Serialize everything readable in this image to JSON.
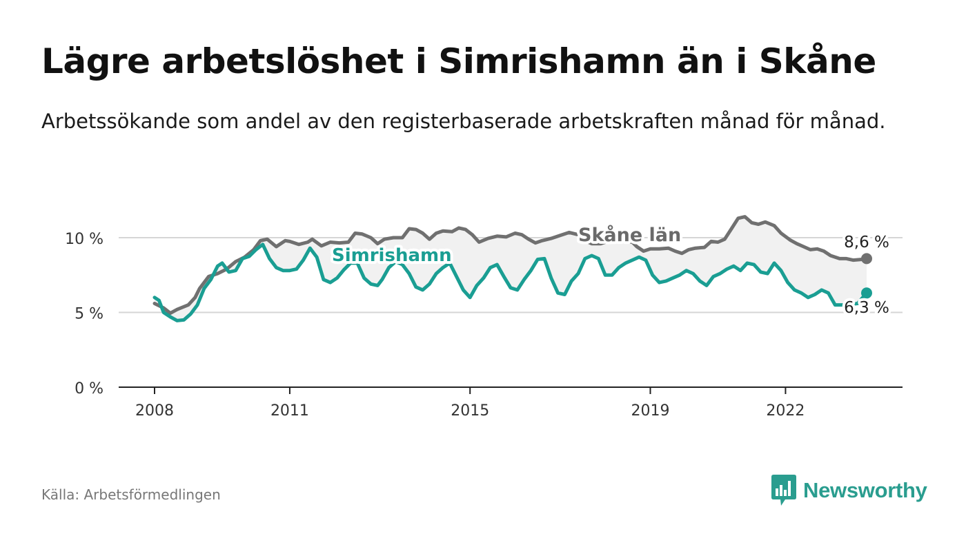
{
  "title": "Lägre arbetslöshet i Simrishamn än i Skåne",
  "subtitle": "Arbetssökande som andel av den registerbaserade arbetskraften månad för månad.",
  "source": "Källa: Arbetsförmedlingen",
  "brand": {
    "name": "Newsworthy",
    "icon": "bar-chart-speech-bubble-icon"
  },
  "colors": {
    "simrishamn": "#1a9e93",
    "skane": "#707070",
    "band": "#f1f1f1",
    "grid": "#d6d6d6",
    "axis": "#222222"
  },
  "chart_data": {
    "type": "line",
    "title": "Lägre arbetslöshet i Simrishamn än i Skåne",
    "xlabel": "",
    "ylabel": "",
    "xlim": [
      2008,
      2022.9
    ],
    "ylim": [
      0,
      10
    ],
    "y_ticks": [
      0,
      5,
      10
    ],
    "y_tick_labels": [
      "0 %",
      "5 %",
      "10 %"
    ],
    "x_ticks": [
      2008,
      2011,
      2015,
      2019,
      2022
    ],
    "x_tick_labels": [
      "2008",
      "2011",
      "2015",
      "2019",
      "2022"
    ],
    "grid": true,
    "series": [
      {
        "name": "Skåne län",
        "label_position": "above-line-2017",
        "end_label": "8,6 %",
        "points": [
          [
            2008.0,
            5.6
          ],
          [
            2008.2,
            5.3
          ],
          [
            2008.35,
            4.95
          ],
          [
            2008.5,
            5.2
          ],
          [
            2008.75,
            5.5
          ],
          [
            2008.9,
            6.0
          ],
          [
            2009.0,
            6.6
          ],
          [
            2009.2,
            7.4
          ],
          [
            2009.4,
            7.6
          ],
          [
            2009.6,
            7.9
          ],
          [
            2009.8,
            8.4
          ],
          [
            2010.0,
            8.7
          ],
          [
            2010.2,
            9.2
          ],
          [
            2010.35,
            9.8
          ],
          [
            2010.5,
            9.9
          ],
          [
            2010.7,
            9.4
          ],
          [
            2010.9,
            9.8
          ],
          [
            2011.0,
            9.75
          ],
          [
            2011.2,
            9.55
          ],
          [
            2011.4,
            9.7
          ],
          [
            2011.5,
            9.9
          ],
          [
            2011.7,
            9.45
          ],
          [
            2011.9,
            9.7
          ],
          [
            2012.1,
            9.65
          ],
          [
            2012.3,
            9.7
          ],
          [
            2012.45,
            10.3
          ],
          [
            2012.6,
            10.25
          ],
          [
            2012.8,
            10.0
          ],
          [
            2012.95,
            9.6
          ],
          [
            2013.1,
            9.9
          ],
          [
            2013.3,
            10.0
          ],
          [
            2013.5,
            10.0
          ],
          [
            2013.65,
            10.6
          ],
          [
            2013.8,
            10.55
          ],
          [
            2013.95,
            10.3
          ],
          [
            2014.1,
            9.9
          ],
          [
            2014.25,
            10.3
          ],
          [
            2014.4,
            10.45
          ],
          [
            2014.6,
            10.4
          ],
          [
            2014.75,
            10.65
          ],
          [
            2014.9,
            10.55
          ],
          [
            2015.05,
            10.2
          ],
          [
            2015.2,
            9.7
          ],
          [
            2015.4,
            9.95
          ],
          [
            2015.6,
            10.1
          ],
          [
            2015.8,
            10.05
          ],
          [
            2016.0,
            10.3
          ],
          [
            2016.15,
            10.2
          ],
          [
            2016.3,
            9.9
          ],
          [
            2016.45,
            9.65
          ],
          [
            2016.6,
            9.8
          ],
          [
            2016.8,
            9.95
          ],
          [
            2017.0,
            10.15
          ],
          [
            2017.2,
            10.35
          ],
          [
            2017.4,
            10.2
          ],
          [
            2017.55,
            9.8
          ],
          [
            2017.7,
            9.6
          ],
          [
            2017.9,
            9.6
          ],
          [
            2018.0,
            9.7
          ],
          [
            2018.2,
            9.7
          ],
          [
            2018.3,
            9.8
          ],
          [
            2018.6,
            9.7
          ],
          [
            2018.7,
            9.4
          ],
          [
            2018.85,
            9.1
          ],
          [
            2019.0,
            9.25
          ],
          [
            2019.2,
            9.25
          ],
          [
            2019.4,
            9.3
          ],
          [
            2019.55,
            9.1
          ],
          [
            2019.7,
            8.95
          ],
          [
            2019.85,
            9.2
          ],
          [
            2020.0,
            9.3
          ],
          [
            2020.2,
            9.35
          ],
          [
            2020.35,
            9.75
          ],
          [
            2020.5,
            9.7
          ],
          [
            2020.65,
            9.9
          ],
          [
            2020.8,
            10.6
          ],
          [
            2020.95,
            11.3
          ],
          [
            2021.1,
            11.4
          ],
          [
            2021.25,
            11.0
          ],
          [
            2021.4,
            10.9
          ],
          [
            2021.55,
            11.05
          ],
          [
            2021.75,
            10.8
          ],
          [
            2021.9,
            10.3
          ],
          [
            2022.1,
            9.85
          ],
          [
            2022.25,
            9.6
          ],
          [
            2022.4,
            9.4
          ],
          [
            2022.55,
            9.2
          ],
          [
            2022.7,
            9.25
          ],
          [
            2022.85,
            9.1
          ],
          [
            2023.0,
            8.8
          ],
          [
            2023.2,
            8.6
          ],
          [
            2023.35,
            8.6
          ],
          [
            2023.5,
            8.5
          ],
          [
            2023.7,
            8.55
          ],
          [
            2023.8,
            8.6
          ]
        ]
      },
      {
        "name": "Simrishamn",
        "label_position": "below-line-2013",
        "end_label": "6,3 %",
        "points": [
          [
            2008.0,
            6.0
          ],
          [
            2008.1,
            5.8
          ],
          [
            2008.2,
            5.0
          ],
          [
            2008.35,
            4.7
          ],
          [
            2008.5,
            4.45
          ],
          [
            2008.65,
            4.5
          ],
          [
            2008.8,
            4.9
          ],
          [
            2008.95,
            5.5
          ],
          [
            2009.1,
            6.6
          ],
          [
            2009.25,
            7.2
          ],
          [
            2009.4,
            8.1
          ],
          [
            2009.5,
            8.3
          ],
          [
            2009.65,
            7.7
          ],
          [
            2009.8,
            7.8
          ],
          [
            2009.95,
            8.6
          ],
          [
            2010.1,
            8.75
          ],
          [
            2010.25,
            9.2
          ],
          [
            2010.4,
            9.55
          ],
          [
            2010.55,
            8.6
          ],
          [
            2010.7,
            8.0
          ],
          [
            2010.85,
            7.8
          ],
          [
            2011.0,
            7.8
          ],
          [
            2011.15,
            7.9
          ],
          [
            2011.3,
            8.5
          ],
          [
            2011.45,
            9.3
          ],
          [
            2011.6,
            8.7
          ],
          [
            2011.75,
            7.2
          ],
          [
            2011.9,
            7.0
          ],
          [
            2012.05,
            7.3
          ],
          [
            2012.2,
            7.85
          ],
          [
            2012.35,
            8.3
          ],
          [
            2012.5,
            8.3
          ],
          [
            2012.65,
            7.3
          ],
          [
            2012.8,
            6.9
          ],
          [
            2012.95,
            6.8
          ],
          [
            2013.05,
            7.2
          ],
          [
            2013.2,
            8.0
          ],
          [
            2013.35,
            8.4
          ],
          [
            2013.5,
            8.2
          ],
          [
            2013.65,
            7.6
          ],
          [
            2013.8,
            6.7
          ],
          [
            2013.95,
            6.5
          ],
          [
            2014.1,
            6.9
          ],
          [
            2014.25,
            7.6
          ],
          [
            2014.4,
            8.0
          ],
          [
            2014.55,
            8.3
          ],
          [
            2014.7,
            7.4
          ],
          [
            2014.85,
            6.5
          ],
          [
            2015.0,
            6.0
          ],
          [
            2015.15,
            6.8
          ],
          [
            2015.3,
            7.3
          ],
          [
            2015.45,
            8.0
          ],
          [
            2015.6,
            8.2
          ],
          [
            2015.75,
            7.4
          ],
          [
            2015.9,
            6.65
          ],
          [
            2016.05,
            6.5
          ],
          [
            2016.2,
            7.2
          ],
          [
            2016.35,
            7.8
          ],
          [
            2016.5,
            8.55
          ],
          [
            2016.65,
            8.6
          ],
          [
            2016.8,
            7.3
          ],
          [
            2016.95,
            6.3
          ],
          [
            2017.1,
            6.2
          ],
          [
            2017.25,
            7.1
          ],
          [
            2017.4,
            7.6
          ],
          [
            2017.55,
            8.6
          ],
          [
            2017.7,
            8.8
          ],
          [
            2017.85,
            8.6
          ],
          [
            2018.0,
            7.5
          ],
          [
            2018.15,
            7.5
          ],
          [
            2018.3,
            8.0
          ],
          [
            2018.45,
            8.3
          ],
          [
            2018.6,
            8.5
          ],
          [
            2018.75,
            8.7
          ],
          [
            2018.9,
            8.5
          ],
          [
            2019.05,
            7.5
          ],
          [
            2019.2,
            7.0
          ],
          [
            2019.35,
            7.1
          ],
          [
            2019.5,
            7.3
          ],
          [
            2019.65,
            7.5
          ],
          [
            2019.8,
            7.8
          ],
          [
            2019.95,
            7.6
          ],
          [
            2020.1,
            7.1
          ],
          [
            2020.25,
            6.8
          ],
          [
            2020.4,
            7.4
          ],
          [
            2020.55,
            7.6
          ],
          [
            2020.7,
            7.9
          ],
          [
            2020.85,
            8.1
          ],
          [
            2021.0,
            7.8
          ],
          [
            2021.15,
            8.3
          ],
          [
            2021.3,
            8.2
          ],
          [
            2021.45,
            7.7
          ],
          [
            2021.6,
            7.6
          ],
          [
            2021.75,
            8.3
          ],
          [
            2021.9,
            7.8
          ],
          [
            2022.05,
            7.0
          ],
          [
            2022.2,
            6.5
          ],
          [
            2022.35,
            6.3
          ],
          [
            2022.5,
            6.0
          ],
          [
            2022.65,
            6.2
          ],
          [
            2022.8,
            6.5
          ],
          [
            2022.95,
            6.3
          ],
          [
            2023.1,
            5.5
          ],
          [
            2023.35,
            5.5
          ],
          [
            2023.6,
            5.6
          ],
          [
            2023.8,
            6.3
          ]
        ]
      }
    ]
  }
}
